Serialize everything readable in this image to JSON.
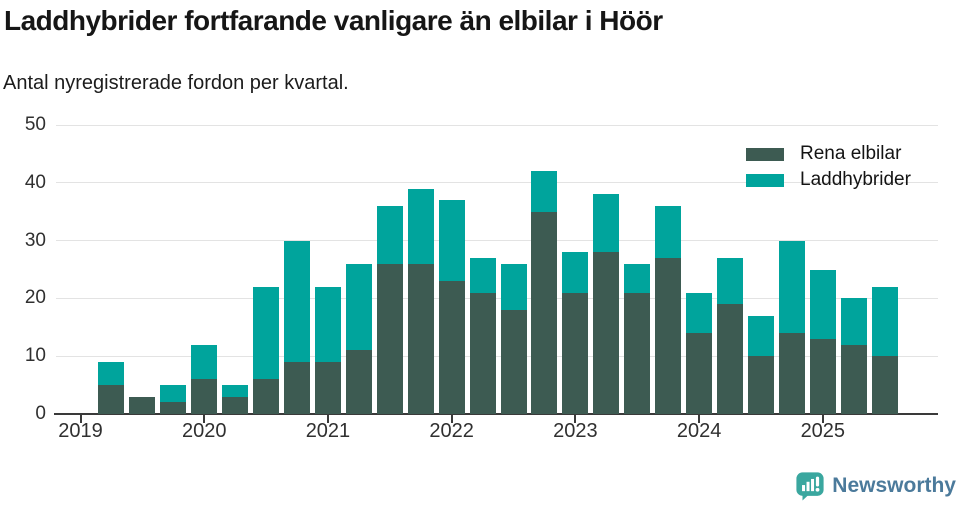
{
  "header": {
    "title": "Laddhybrider fortfarande vanligare än elbilar i Höör",
    "subtitle": "Antal nyregistrerade fordon per kvartal."
  },
  "legend": {
    "items": [
      {
        "label": "Rena elbilar",
        "color": "#3d5b52"
      },
      {
        "label": "Laddhybrider",
        "color": "#00a49c"
      }
    ]
  },
  "footer": {
    "brand": "Newsworthy",
    "icon": "newsworthy-speech-bubble-chart-icon",
    "icon_color": "#3aa79f",
    "text_color": "#4b7a9b"
  },
  "chart_data": {
    "type": "bar",
    "stacked": true,
    "title": "Laddhybrider fortfarande vanligare än elbilar i Höör",
    "subtitle": "Antal nyregistrerade fordon per kvartal.",
    "categories": [
      "2019 Q1",
      "2019 Q2",
      "2019 Q3",
      "2019 Q4",
      "2020 Q1",
      "2020 Q2",
      "2020 Q3",
      "2020 Q4",
      "2021 Q1",
      "2021 Q2",
      "2021 Q3",
      "2021 Q4",
      "2022 Q1",
      "2022 Q2",
      "2022 Q3",
      "2022 Q4",
      "2023 Q1",
      "2023 Q2",
      "2023 Q3",
      "2023 Q4",
      "2024 Q1",
      "2024 Q2",
      "2024 Q3",
      "2024 Q4",
      "2025 Q1",
      "2025 Q2",
      "2025 Q3"
    ],
    "series": [
      {
        "name": "Rena elbilar",
        "color": "#3d5b52",
        "values": [
          0,
          5,
          3,
          2,
          6,
          3,
          6,
          9,
          9,
          11,
          26,
          26,
          23,
          21,
          18,
          35,
          21,
          28,
          21,
          27,
          14,
          19,
          10,
          14,
          13,
          12,
          10
        ]
      },
      {
        "name": "Laddhybrider",
        "color": "#00a49c",
        "values": [
          0,
          4,
          0,
          3,
          6,
          2,
          16,
          21,
          13,
          15,
          10,
          13,
          14,
          6,
          8,
          7,
          7,
          10,
          5,
          9,
          7,
          8,
          7,
          16,
          12,
          8,
          12
        ]
      }
    ],
    "totals": [
      0,
      9,
      3,
      5,
      12,
      5,
      22,
      30,
      22,
      26,
      36,
      39,
      37,
      27,
      26,
      42,
      28,
      38,
      26,
      36,
      21,
      27,
      17,
      30,
      25,
      20,
      22
    ],
    "x_tick_labels": [
      "2019",
      "2020",
      "2021",
      "2022",
      "2023",
      "2024",
      "2025"
    ],
    "x_tick_indices": [
      0,
      4,
      8,
      12,
      16,
      20,
      24
    ],
    "y_ticks": [
      0,
      10,
      20,
      30,
      40,
      50
    ],
    "ylim": [
      0,
      50
    ],
    "grid": true,
    "legend_position": "top-right",
    "colors": {
      "axis": "#3a3a3a",
      "gridline": "#e3e3e3"
    }
  }
}
